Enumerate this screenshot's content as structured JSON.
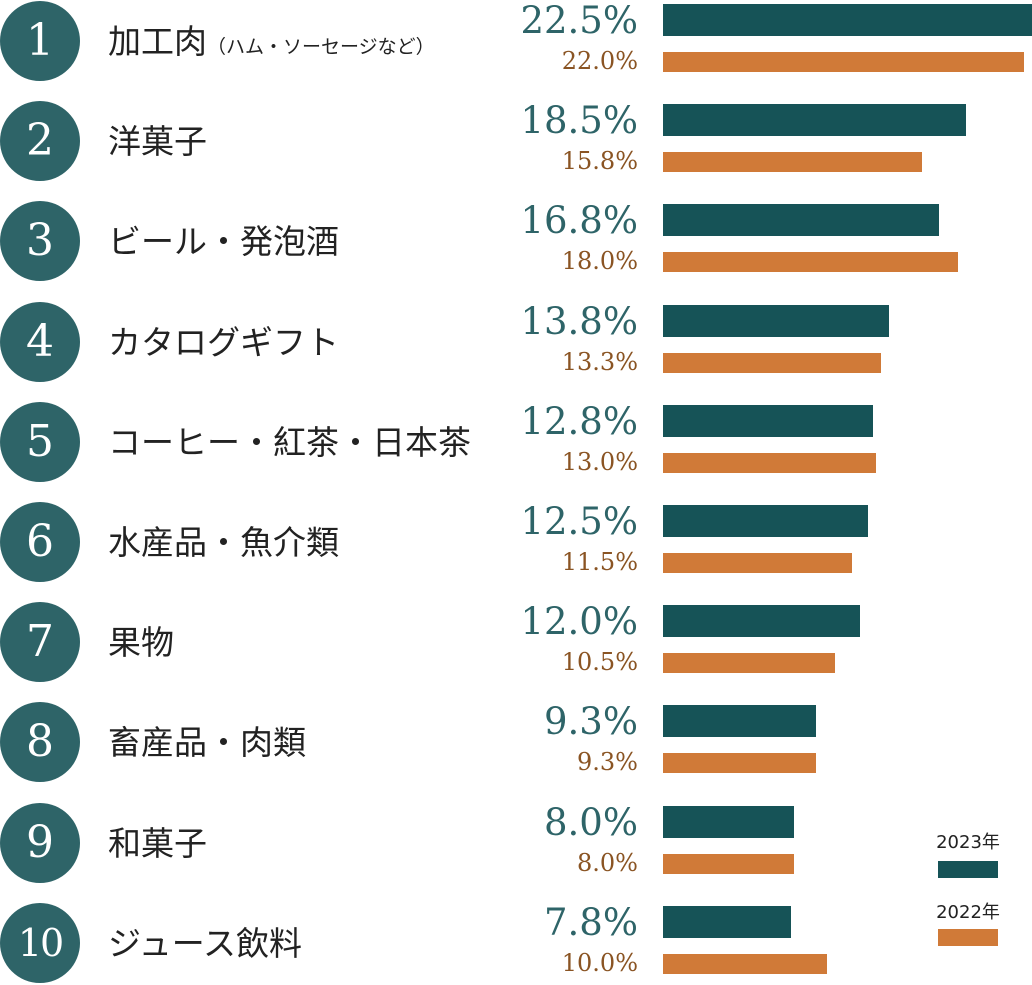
{
  "chart_data": {
    "type": "bar",
    "orientation": "horizontal",
    "ranks": [
      "1",
      "2",
      "3",
      "4",
      "5",
      "6",
      "7",
      "8",
      "9",
      "10"
    ],
    "categories": [
      {
        "main": "加工肉",
        "sub": "（ハム・ソーセージなど）"
      },
      {
        "main": "洋菓子",
        "sub": ""
      },
      {
        "main": "ビール・発泡酒",
        "sub": ""
      },
      {
        "main": "カタログギフト",
        "sub": ""
      },
      {
        "main": "コーヒー・紅茶・日本茶",
        "sub": ""
      },
      {
        "main": "水産品・魚介類",
        "sub": ""
      },
      {
        "main": "果物",
        "sub": ""
      },
      {
        "main": "畜産品・肉類",
        "sub": ""
      },
      {
        "main": "和菓子",
        "sub": ""
      },
      {
        "main": "ジュース飲料",
        "sub": ""
      }
    ],
    "series": [
      {
        "name": "2023年",
        "color": "#165357",
        "values": [
          22.5,
          18.5,
          16.8,
          13.8,
          12.8,
          12.5,
          12.0,
          9.3,
          8.0,
          7.8
        ],
        "labels": [
          "22.5%",
          "18.5%",
          "16.8%",
          "13.8%",
          "12.8%",
          "12.5%",
          "12.0%",
          "9.3%",
          "8.0%",
          "7.8%"
        ]
      },
      {
        "name": "2022年",
        "color": "#d07a38",
        "values": [
          22.0,
          15.8,
          18.0,
          13.3,
          13.0,
          11.5,
          10.5,
          9.3,
          8.0,
          10.0
        ],
        "labels": [
          "22.0%",
          "15.8%",
          "18.0%",
          "13.3%",
          "13.0%",
          "11.5%",
          "10.5%",
          "9.3%",
          "8.0%",
          "10.0%"
        ]
      }
    ],
    "xlim": [
      0,
      22.5
    ],
    "legend": "bottom-right",
    "grid": false
  }
}
